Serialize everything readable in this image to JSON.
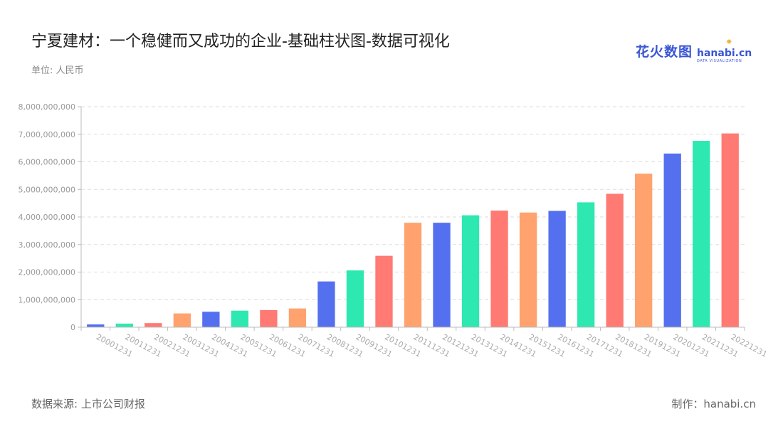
{
  "header": {
    "title": "宁夏建材：一个稳健而又成功的企业-基础柱状图-数据可视化",
    "unit": "单位: 人民币"
  },
  "footer": {
    "source": "数据来源: 上市公司财报",
    "credit": "制作：hanabi.cn"
  },
  "logo": {
    "cn": "花火数图",
    "en": "hanabi.cn",
    "en_sub": "DATA VISUALIZATION",
    "icon": "star-icon"
  },
  "colors": {
    "palette": [
      "#5470ee",
      "#2de8b0",
      "#ff7a73",
      "#ffa26e"
    ],
    "grid": "#dddddd",
    "axis": "#bbbbbb"
  },
  "chart_data": {
    "type": "bar",
    "categories": [
      "20001231",
      "20011231",
      "20021231",
      "20031231",
      "20041231",
      "20051231",
      "20061231",
      "20071231",
      "20081231",
      "20091231",
      "20101231",
      "20111231",
      "20121231",
      "20131231",
      "20141231",
      "20151231",
      "20161231",
      "20171231",
      "20181231",
      "20191231",
      "20201231",
      "20211231",
      "20221231"
    ],
    "values": [
      100000000,
      130000000,
      150000000,
      500000000,
      560000000,
      600000000,
      620000000,
      680000000,
      1660000000,
      2060000000,
      2590000000,
      3790000000,
      3790000000,
      4060000000,
      4230000000,
      4160000000,
      4220000000,
      4530000000,
      4840000000,
      5570000000,
      6300000000,
      6760000000,
      7030000000
    ],
    "bar_colors": [
      "#5470ee",
      "#2de8b0",
      "#ff7a73",
      "#ffa26e",
      "#5470ee",
      "#2de8b0",
      "#ff7a73",
      "#ffa26e",
      "#5470ee",
      "#2de8b0",
      "#ff7a73",
      "#ffa26e",
      "#5470ee",
      "#2de8b0",
      "#ff7a73",
      "#ffa26e",
      "#5470ee",
      "#2de8b0",
      "#ff7a73",
      "#ffa26e",
      "#5470ee",
      "#2de8b0",
      "#ff7a73"
    ],
    "yticks": [
      "0",
      "1,000,000,000",
      "2,000,000,000",
      "3,000,000,000",
      "4,000,000,000",
      "5,000,000,000",
      "6,000,000,000",
      "7,000,000,000",
      "8,000,000,000"
    ],
    "ylim": [
      0,
      8000000000
    ],
    "grid": true,
    "legend": "none"
  }
}
